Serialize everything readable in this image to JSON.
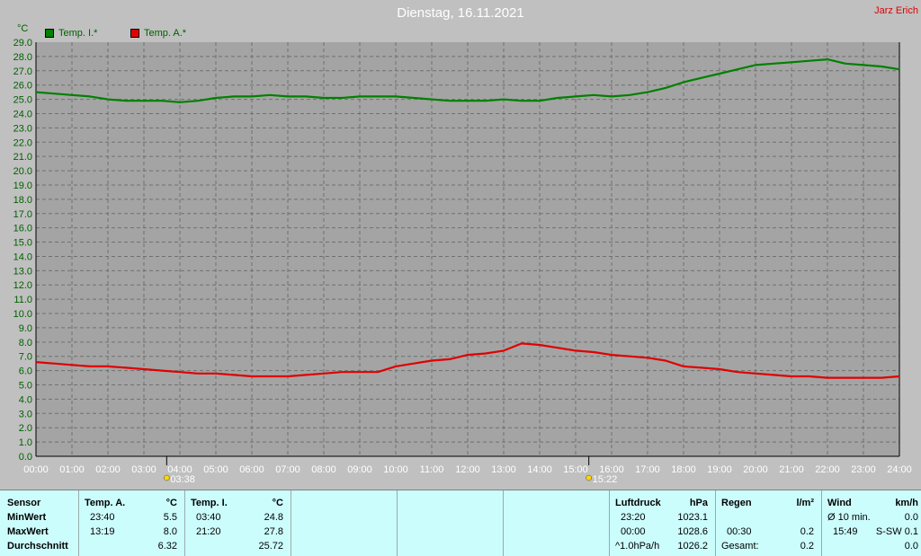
{
  "header": {
    "title": "Dienstag, 16.11.2021",
    "author": "Jarz Erich",
    "unit": "°C"
  },
  "legend": [
    {
      "label": "Temp. I.*",
      "color": "#008000"
    },
    {
      "label": "Temp. A.*",
      "color": "#e00000"
    }
  ],
  "markers": [
    {
      "time": "03:38",
      "hour": 3.633
    },
    {
      "time": "15:22",
      "hour": 15.367
    }
  ],
  "chart_data": {
    "type": "line",
    "title": "Dienstag, 16.11.2021",
    "ylabel": "°C",
    "xlabel": "",
    "xlim": [
      0,
      24
    ],
    "ylim": [
      0,
      29
    ],
    "grid": true,
    "legend_position": "top-left",
    "x_ticks": [
      "00:00",
      "01:00",
      "02:00",
      "03:00",
      "04:00",
      "05:00",
      "06:00",
      "07:00",
      "08:00",
      "09:00",
      "10:00",
      "11:00",
      "12:00",
      "13:00",
      "14:00",
      "15:00",
      "16:00",
      "17:00",
      "18:00",
      "19:00",
      "20:00",
      "21:00",
      "22:00",
      "23:00",
      "24:00"
    ],
    "y_ticks": [
      "0.0",
      "1.0",
      "2.0",
      "3.0",
      "4.0",
      "5.0",
      "6.0",
      "7.0",
      "8.0",
      "9.0",
      "10.0",
      "11.0",
      "12.0",
      "13.0",
      "14.0",
      "15.0",
      "16.0",
      "17.0",
      "18.0",
      "19.0",
      "20.0",
      "21.0",
      "22.0",
      "23.0",
      "24.0",
      "25.0",
      "26.0",
      "27.0",
      "28.0",
      "29.0"
    ],
    "series": [
      {
        "name": "Temp. I.*",
        "color": "#008000",
        "points": [
          [
            0,
            25.5
          ],
          [
            0.5,
            25.4
          ],
          [
            1,
            25.3
          ],
          [
            1.5,
            25.2
          ],
          [
            2,
            25.0
          ],
          [
            2.5,
            24.9
          ],
          [
            3,
            24.9
          ],
          [
            3.5,
            24.9
          ],
          [
            4,
            24.8
          ],
          [
            4.5,
            24.9
          ],
          [
            5,
            25.1
          ],
          [
            5.5,
            25.2
          ],
          [
            6,
            25.2
          ],
          [
            6.5,
            25.3
          ],
          [
            7,
            25.2
          ],
          [
            7.5,
            25.2
          ],
          [
            8,
            25.1
          ],
          [
            8.5,
            25.1
          ],
          [
            9,
            25.2
          ],
          [
            9.5,
            25.2
          ],
          [
            10,
            25.2
          ],
          [
            10.5,
            25.1
          ],
          [
            11,
            25.0
          ],
          [
            11.5,
            24.9
          ],
          [
            12,
            24.9
          ],
          [
            12.5,
            24.9
          ],
          [
            13,
            25.0
          ],
          [
            13.5,
            24.9
          ],
          [
            14,
            24.9
          ],
          [
            14.5,
            25.1
          ],
          [
            15,
            25.2
          ],
          [
            15.5,
            25.3
          ],
          [
            16,
            25.2
          ],
          [
            16.5,
            25.3
          ],
          [
            17,
            25.5
          ],
          [
            17.5,
            25.8
          ],
          [
            18,
            26.2
          ],
          [
            18.5,
            26.5
          ],
          [
            19,
            26.8
          ],
          [
            19.5,
            27.1
          ],
          [
            20,
            27.4
          ],
          [
            20.5,
            27.5
          ],
          [
            21,
            27.6
          ],
          [
            21.5,
            27.7
          ],
          [
            22,
            27.8
          ],
          [
            22.5,
            27.5
          ],
          [
            23,
            27.4
          ],
          [
            23.5,
            27.3
          ],
          [
            24,
            27.1
          ]
        ]
      },
      {
        "name": "Temp. A.*",
        "color": "#e00000",
        "points": [
          [
            0,
            6.6
          ],
          [
            0.5,
            6.5
          ],
          [
            1,
            6.4
          ],
          [
            1.5,
            6.3
          ],
          [
            2,
            6.3
          ],
          [
            2.5,
            6.2
          ],
          [
            3,
            6.1
          ],
          [
            3.5,
            6.0
          ],
          [
            4,
            5.9
          ],
          [
            4.5,
            5.8
          ],
          [
            5,
            5.8
          ],
          [
            5.5,
            5.7
          ],
          [
            6,
            5.6
          ],
          [
            6.5,
            5.6
          ],
          [
            7,
            5.6
          ],
          [
            7.5,
            5.7
          ],
          [
            8,
            5.8
          ],
          [
            8.5,
            5.9
          ],
          [
            9,
            5.9
          ],
          [
            9.5,
            5.9
          ],
          [
            10,
            6.3
          ],
          [
            10.5,
            6.5
          ],
          [
            11,
            6.7
          ],
          [
            11.5,
            6.8
          ],
          [
            12,
            7.1
          ],
          [
            12.5,
            7.2
          ],
          [
            13,
            7.4
          ],
          [
            13.5,
            7.9
          ],
          [
            14,
            7.8
          ],
          [
            14.5,
            7.6
          ],
          [
            15,
            7.4
          ],
          [
            15.5,
            7.3
          ],
          [
            16,
            7.1
          ],
          [
            16.5,
            7.0
          ],
          [
            17,
            6.9
          ],
          [
            17.5,
            6.7
          ],
          [
            18,
            6.3
          ],
          [
            18.5,
            6.2
          ],
          [
            19,
            6.1
          ],
          [
            19.5,
            5.9
          ],
          [
            20,
            5.8
          ],
          [
            20.5,
            5.7
          ],
          [
            21,
            5.6
          ],
          [
            21.5,
            5.6
          ],
          [
            22,
            5.5
          ],
          [
            22.5,
            5.5
          ],
          [
            23,
            5.5
          ],
          [
            23.5,
            5.5
          ],
          [
            24,
            5.6
          ]
        ]
      }
    ]
  },
  "table": {
    "sensor": {
      "title": "Sensor",
      "rows": [
        "MinWert",
        "MaxWert",
        "Durchschnitt"
      ]
    },
    "temp_a": {
      "title": "Temp. A.",
      "unit": "°C",
      "min_time": "23:40",
      "min_val": "5.5",
      "max_time": "13:19",
      "max_val": "8.0",
      "avg": "6.32"
    },
    "temp_i": {
      "title": "Temp. I.",
      "unit": "°C",
      "min_time": "03:40",
      "min_val": "24.8",
      "max_time": "21:20",
      "max_val": "27.8",
      "avg": "25.72"
    },
    "pressure": {
      "title": "Luftdruck",
      "unit": "hPa",
      "r1_label": "23:20",
      "r1_val": "1023.1",
      "r2_label": "00:00",
      "r2_val": "1028.6",
      "r3_label": "^1.0hPa/h",
      "r3_val": "1026.2"
    },
    "rain": {
      "title": "Regen",
      "unit": "l/m²",
      "r2_label": "00:30",
      "r2_val": "0.2",
      "r3_label": "Gesamt:",
      "r3_val": "0.2"
    },
    "wind": {
      "title": "Wind",
      "unit": "km/h",
      "r1_label": "Ø 10 min.",
      "r1_val": "0.0",
      "r2_label": "15:49",
      "r2_val": "S-SW 0.1",
      "r3_val": "0.0"
    }
  }
}
